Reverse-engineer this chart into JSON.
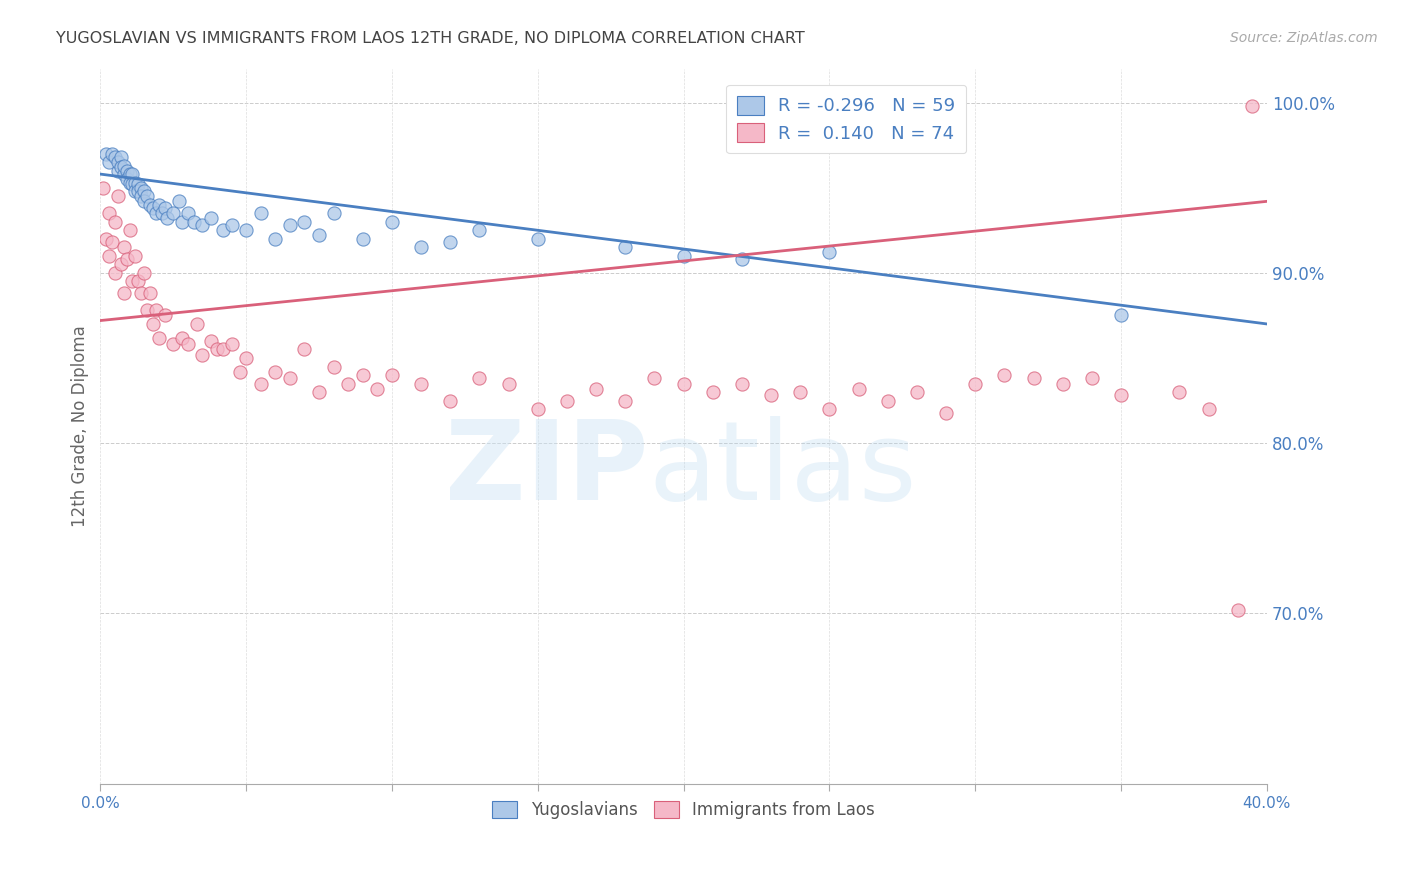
{
  "title": "YUGOSLAVIAN VS IMMIGRANTS FROM LAOS 12TH GRADE, NO DIPLOMA CORRELATION CHART",
  "source": "Source: ZipAtlas.com",
  "ylabel": "12th Grade, No Diploma",
  "right_yticks": [
    "100.0%",
    "90.0%",
    "80.0%",
    "70.0%"
  ],
  "right_ytick_vals": [
    1.0,
    0.9,
    0.8,
    0.7
  ],
  "legend_label1": "R = -0.296   N = 59",
  "legend_label2": "R =  0.140   N = 74",
  "legend_color1": "#adc8e8",
  "legend_color2": "#f5b8c8",
  "dot_color1": "#adc8e8",
  "dot_color2": "#f5b8c8",
  "line_color1": "#4a7fc1",
  "line_color2": "#d9607a",
  "yug_x": [
    0.002,
    0.003,
    0.004,
    0.005,
    0.006,
    0.006,
    0.007,
    0.007,
    0.008,
    0.008,
    0.009,
    0.009,
    0.01,
    0.01,
    0.011,
    0.011,
    0.012,
    0.012,
    0.013,
    0.013,
    0.014,
    0.014,
    0.015,
    0.015,
    0.016,
    0.017,
    0.018,
    0.019,
    0.02,
    0.021,
    0.022,
    0.023,
    0.025,
    0.027,
    0.028,
    0.03,
    0.032,
    0.035,
    0.038,
    0.042,
    0.045,
    0.05,
    0.055,
    0.06,
    0.065,
    0.07,
    0.075,
    0.08,
    0.09,
    0.1,
    0.11,
    0.12,
    0.13,
    0.15,
    0.18,
    0.2,
    0.22,
    0.25,
    0.35
  ],
  "yug_y": [
    0.97,
    0.965,
    0.97,
    0.968,
    0.96,
    0.965,
    0.968,
    0.962,
    0.958,
    0.963,
    0.96,
    0.955,
    0.958,
    0.953,
    0.958,
    0.952,
    0.953,
    0.948,
    0.952,
    0.948,
    0.95,
    0.945,
    0.948,
    0.942,
    0.945,
    0.94,
    0.938,
    0.935,
    0.94,
    0.935,
    0.938,
    0.932,
    0.935,
    0.942,
    0.93,
    0.935,
    0.93,
    0.928,
    0.932,
    0.925,
    0.928,
    0.925,
    0.935,
    0.92,
    0.928,
    0.93,
    0.922,
    0.935,
    0.92,
    0.93,
    0.915,
    0.918,
    0.925,
    0.92,
    0.915,
    0.91,
    0.908,
    0.912,
    0.875
  ],
  "laos_x": [
    0.001,
    0.002,
    0.003,
    0.003,
    0.004,
    0.005,
    0.005,
    0.006,
    0.007,
    0.008,
    0.008,
    0.009,
    0.01,
    0.011,
    0.012,
    0.013,
    0.014,
    0.015,
    0.016,
    0.017,
    0.018,
    0.019,
    0.02,
    0.022,
    0.025,
    0.028,
    0.03,
    0.033,
    0.035,
    0.038,
    0.04,
    0.042,
    0.045,
    0.048,
    0.05,
    0.055,
    0.06,
    0.065,
    0.07,
    0.075,
    0.08,
    0.085,
    0.09,
    0.095,
    0.1,
    0.11,
    0.12,
    0.13,
    0.14,
    0.15,
    0.16,
    0.17,
    0.18,
    0.19,
    0.2,
    0.21,
    0.22,
    0.23,
    0.24,
    0.25,
    0.26,
    0.27,
    0.28,
    0.29,
    0.3,
    0.31,
    0.32,
    0.33,
    0.34,
    0.35,
    0.37,
    0.38,
    0.39,
    0.395
  ],
  "laos_y": [
    0.95,
    0.92,
    0.935,
    0.91,
    0.918,
    0.93,
    0.9,
    0.945,
    0.905,
    0.915,
    0.888,
    0.908,
    0.925,
    0.895,
    0.91,
    0.895,
    0.888,
    0.9,
    0.878,
    0.888,
    0.87,
    0.878,
    0.862,
    0.875,
    0.858,
    0.862,
    0.858,
    0.87,
    0.852,
    0.86,
    0.855,
    0.855,
    0.858,
    0.842,
    0.85,
    0.835,
    0.842,
    0.838,
    0.855,
    0.83,
    0.845,
    0.835,
    0.84,
    0.832,
    0.84,
    0.835,
    0.825,
    0.838,
    0.835,
    0.82,
    0.825,
    0.832,
    0.825,
    0.838,
    0.835,
    0.83,
    0.835,
    0.828,
    0.83,
    0.82,
    0.832,
    0.825,
    0.83,
    0.818,
    0.835,
    0.84,
    0.838,
    0.835,
    0.838,
    0.828,
    0.83,
    0.82,
    0.702,
    0.998
  ],
  "xlim": [
    0.0,
    0.4
  ],
  "ylim": [
    0.6,
    1.02
  ],
  "yug_trend_x": [
    0.0,
    0.4
  ],
  "yug_trend_y": [
    0.958,
    0.87
  ],
  "laos_trend_x": [
    0.0,
    0.4
  ],
  "laos_trend_y": [
    0.872,
    0.942
  ]
}
